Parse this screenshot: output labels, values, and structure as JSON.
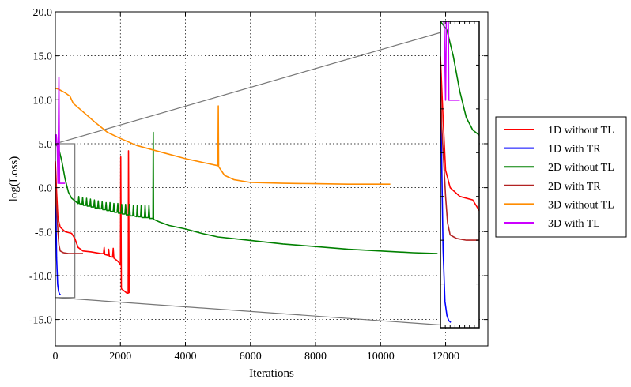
{
  "chart_data": {
    "type": "line",
    "title": "",
    "xlabel": "Iterations",
    "ylabel": "log(Loss)",
    "xlim": [
      0,
      13300
    ],
    "ylim": [
      -18,
      20
    ],
    "xticks": [
      0,
      2000,
      4000,
      6000,
      8000,
      10000,
      12000
    ],
    "yticks": [
      20,
      15,
      10,
      5,
      0,
      -5,
      -10,
      -15
    ],
    "xtick_labels": [
      "0",
      "2000",
      "4000",
      "6000",
      "8000",
      "10000",
      "12000"
    ],
    "ytick_labels": [
      "20.0",
      "15.0",
      "10.0",
      "5.0",
      "0.0",
      "-5.0",
      "-10.0",
      "-15.0"
    ],
    "grid": true,
    "legend_position": "outside-right",
    "zoom_region": {
      "x": [
        0,
        600
      ],
      "y": [
        -12.5,
        5
      ]
    },
    "series": [
      {
        "name": "1D without TL",
        "color": "#ff0000",
        "points": [
          [
            0,
            3
          ],
          [
            40,
            -0.5
          ],
          [
            80,
            -3.5
          ],
          [
            150,
            -4.5
          ],
          [
            300,
            -5
          ],
          [
            500,
            -5.2
          ],
          [
            600,
            -5.8
          ],
          [
            700,
            -6.8
          ],
          [
            850,
            -7.2
          ],
          [
            1100,
            -7.3
          ],
          [
            1400,
            -7.5
          ],
          [
            1480,
            -7.5
          ],
          [
            1500,
            -6.8
          ],
          [
            1520,
            -7.6
          ],
          [
            1620,
            -7.7
          ],
          [
            1640,
            -7.0
          ],
          [
            1660,
            -7.8
          ],
          [
            1760,
            -7.9
          ],
          [
            1780,
            -6.9
          ],
          [
            1800,
            -8.0
          ],
          [
            1900,
            -8.3
          ],
          [
            1980,
            -8.6
          ],
          [
            2000,
            -8.8
          ],
          [
            2010,
            3.5
          ],
          [
            2030,
            -11.5
          ],
          [
            2100,
            -11.7
          ],
          [
            2200,
            -12.0
          ],
          [
            2240,
            -12.0
          ],
          [
            2250,
            4.2
          ],
          [
            2270,
            -12.0
          ]
        ]
      },
      {
        "name": "1D with TR",
        "color": "#0000ff",
        "points": [
          [
            0,
            2
          ],
          [
            20,
            -3
          ],
          [
            40,
            -8
          ],
          [
            70,
            -11
          ],
          [
            100,
            -11.8
          ],
          [
            130,
            -12.1
          ],
          [
            160,
            -12.2
          ]
        ]
      },
      {
        "name": "2D without TL",
        "color": "#008000",
        "points": [
          [
            0,
            5
          ],
          [
            100,
            4.5
          ],
          [
            200,
            3
          ],
          [
            300,
            1
          ],
          [
            400,
            -0.5
          ],
          [
            500,
            -1.2
          ],
          [
            600,
            -1.5
          ],
          [
            700,
            -1.8
          ],
          [
            720,
            -1.0
          ],
          [
            740,
            -1.8
          ],
          [
            820,
            -1.9
          ],
          [
            840,
            -1.1
          ],
          [
            860,
            -2.0
          ],
          [
            940,
            -2.0
          ],
          [
            960,
            -1.2
          ],
          [
            980,
            -2.1
          ],
          [
            1060,
            -2.1
          ],
          [
            1080,
            -1.3
          ],
          [
            1100,
            -2.2
          ],
          [
            1180,
            -2.2
          ],
          [
            1200,
            -1.4
          ],
          [
            1220,
            -2.3
          ],
          [
            1300,
            -2.3
          ],
          [
            1320,
            -1.5
          ],
          [
            1340,
            -2.4
          ],
          [
            1420,
            -2.4
          ],
          [
            1440,
            -1.6
          ],
          [
            1460,
            -2.5
          ],
          [
            1540,
            -2.5
          ],
          [
            1560,
            -1.7
          ],
          [
            1580,
            -2.6
          ],
          [
            1660,
            -2.6
          ],
          [
            1680,
            -1.7
          ],
          [
            1700,
            -2.7
          ],
          [
            1780,
            -2.7
          ],
          [
            1800,
            -1.8
          ],
          [
            1820,
            -2.8
          ],
          [
            1900,
            -2.8
          ],
          [
            1920,
            -1.8
          ],
          [
            1940,
            -2.9
          ],
          [
            2020,
            -2.9
          ],
          [
            2040,
            -1.9
          ],
          [
            2060,
            -3.0
          ],
          [
            2140,
            -3.0
          ],
          [
            2160,
            -1.9
          ],
          [
            2180,
            -3.1
          ],
          [
            2260,
            -3.1
          ],
          [
            2280,
            -1.9
          ],
          [
            2300,
            -3.2
          ],
          [
            2380,
            -3.2
          ],
          [
            2400,
            -2.0
          ],
          [
            2420,
            -3.2
          ],
          [
            2500,
            -3.3
          ],
          [
            2520,
            -2.0
          ],
          [
            2540,
            -3.3
          ],
          [
            2620,
            -3.3
          ],
          [
            2640,
            -2.0
          ],
          [
            2660,
            -3.4
          ],
          [
            2740,
            -3.4
          ],
          [
            2760,
            -2.0
          ],
          [
            2780,
            -3.4
          ],
          [
            2860,
            -3.4
          ],
          [
            2880,
            -2.0
          ],
          [
            2900,
            -3.5
          ],
          [
            3000,
            -3.5
          ],
          [
            3010,
            6.3
          ],
          [
            3020,
            -3.6
          ],
          [
            3200,
            -3.9
          ],
          [
            3500,
            -4.3
          ],
          [
            4000,
            -4.7
          ],
          [
            4500,
            -5.2
          ],
          [
            5000,
            -5.6
          ],
          [
            6000,
            -6.0
          ],
          [
            7000,
            -6.4
          ],
          [
            8000,
            -6.7
          ],
          [
            9000,
            -7.0
          ],
          [
            10000,
            -7.2
          ],
          [
            11000,
            -7.4
          ],
          [
            11750,
            -7.5
          ]
        ]
      },
      {
        "name": "2D with TR",
        "color": "#b22222",
        "points": [
          [
            0,
            2
          ],
          [
            20,
            -1
          ],
          [
            50,
            -3
          ],
          [
            80,
            -5
          ],
          [
            110,
            -6.5
          ],
          [
            150,
            -7.2
          ],
          [
            250,
            -7.4
          ],
          [
            400,
            -7.5
          ],
          [
            600,
            -7.5
          ],
          [
            850,
            -7.5
          ]
        ]
      },
      {
        "name": "3D without TL",
        "color": "#ff8c00",
        "points": [
          [
            0,
            11.3
          ],
          [
            100,
            11.2
          ],
          [
            300,
            10.8
          ],
          [
            450,
            10.4
          ],
          [
            550,
            9.6
          ],
          [
            800,
            8.8
          ],
          [
            1200,
            7.5
          ],
          [
            1600,
            6.3
          ],
          [
            2000,
            5.6
          ],
          [
            2500,
            4.8
          ],
          [
            3000,
            4.3
          ],
          [
            3500,
            3.8
          ],
          [
            4000,
            3.3
          ],
          [
            4500,
            2.9
          ],
          [
            5000,
            2.5
          ],
          [
            5010,
            9.3
          ],
          [
            5020,
            2.4
          ],
          [
            5200,
            1.4
          ],
          [
            5500,
            0.9
          ],
          [
            6000,
            0.6
          ],
          [
            7000,
            0.5
          ],
          [
            8000,
            0.45
          ],
          [
            9000,
            0.4
          ],
          [
            10300,
            0.4
          ]
        ]
      },
      {
        "name": "3D with TL",
        "color": "#cc00ff",
        "points": [
          [
            0,
            5
          ],
          [
            30,
            6
          ],
          [
            60,
            4.5
          ],
          [
            80,
            0.5
          ],
          [
            110,
            12.6
          ],
          [
            130,
            0.5
          ],
          [
            180,
            0.5
          ],
          [
            300,
            0.5
          ]
        ]
      }
    ]
  }
}
